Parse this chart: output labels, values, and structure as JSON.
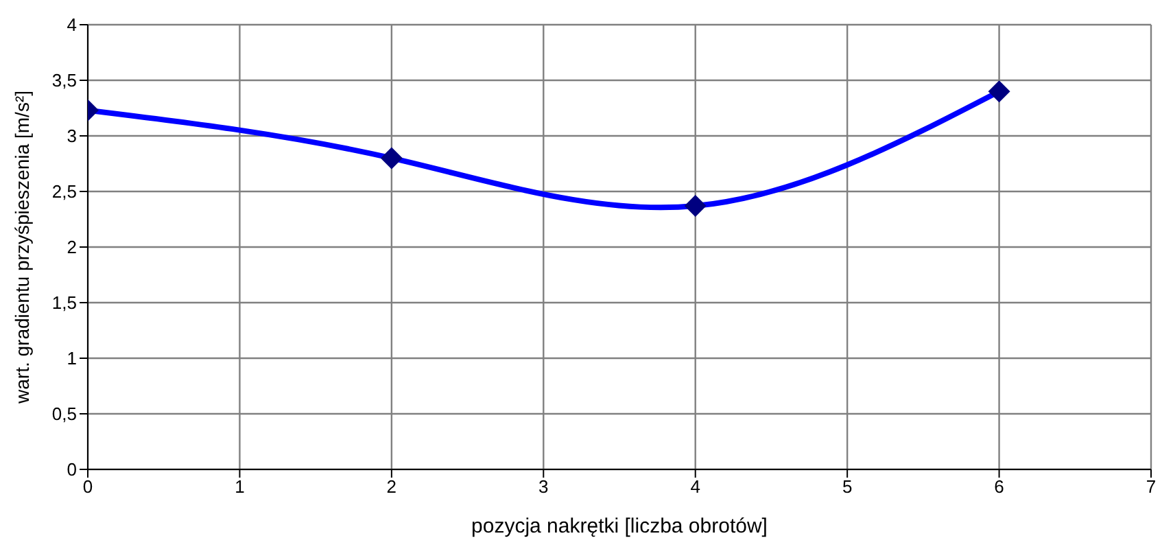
{
  "chart_data": {
    "type": "line",
    "xlabel": "pozycja nakrętki [liczba obrotów]",
    "ylabel": "wart. gradientu przyśpieszenia [m/s²]",
    "x": [
      0,
      2,
      4,
      6
    ],
    "series": [
      {
        "color": "#0000ff",
        "values": [
          3.23,
          2.8,
          2.37,
          3.4
        ]
      }
    ],
    "marker": "diamond",
    "line_style": "solid",
    "grid": true,
    "legend": false,
    "xlim": [
      0,
      7
    ],
    "xticks": [
      0,
      1,
      2,
      3,
      4,
      5,
      6,
      7
    ],
    "ylim": [
      0,
      4
    ],
    "yticks": [
      0,
      {
        "value": 0.5,
        "label": "0,5"
      },
      1,
      {
        "value": 1.5,
        "label": "1,5"
      },
      2,
      {
        "value": 2.5,
        "label": "2,5"
      },
      3,
      {
        "value": 3.5,
        "label": "3,5"
      },
      4
    ]
  }
}
